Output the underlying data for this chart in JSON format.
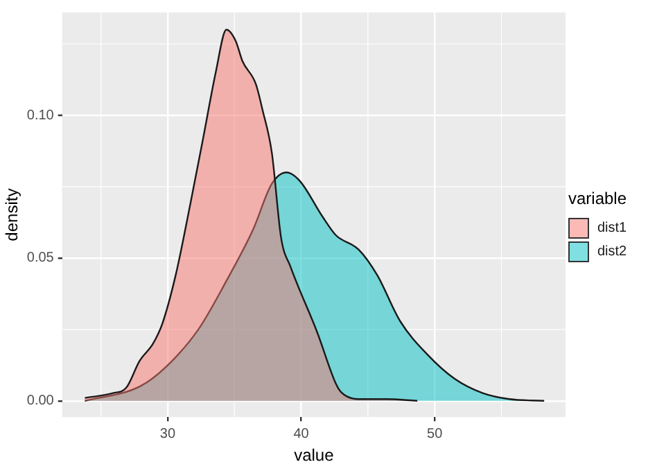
{
  "chart_data": {
    "type": "area",
    "xlabel": "value",
    "ylabel": "density",
    "legend_title": "variable",
    "legend": "right",
    "grid": true,
    "xlim": [
      22.1,
      59.8
    ],
    "ylim": [
      -0.0057,
      0.136
    ],
    "xticks": [
      30,
      40,
      50
    ],
    "yticks": [
      {
        "value": 0,
        "label": "0.00"
      },
      {
        "value": 0.05,
        "label": "0.05"
      },
      {
        "value": 0.1,
        "label": "0.10"
      }
    ],
    "series": [
      {
        "name": "dist1",
        "color": "#f8766d",
        "x": [
          23.8,
          25.9,
          26.9,
          27.9,
          28.9,
          29.6,
          30.6,
          31.7,
          32.7,
          33.6,
          34.4,
          35.1,
          35.6,
          36.6,
          37.1,
          37.8,
          38.5,
          39.2,
          41.2,
          42.6,
          43.0,
          44.3,
          46.3,
          48.7
        ],
        "values": [
          0.001,
          0.0027,
          0.0046,
          0.014,
          0.02,
          0.027,
          0.044,
          0.069,
          0.093,
          0.115,
          0.13,
          0.126,
          0.119,
          0.111,
          0.102,
          0.087,
          0.057,
          0.047,
          0.024,
          0.006,
          0.003,
          0.0006,
          0.0006,
          0
        ]
      },
      {
        "name": "dist2",
        "color": "#00bfc4",
        "x": [
          23.8,
          27.9,
          29.9,
          32.3,
          34.4,
          36.4,
          37.8,
          38.9,
          39.9,
          41.6,
          42.6,
          44.3,
          45.7,
          47.4,
          49.5,
          51.5,
          53.6,
          55.6,
          58.2
        ],
        "values": [
          0,
          0.005,
          0.012,
          0.025,
          0.042,
          0.06,
          0.076,
          0.08,
          0.077,
          0.0645,
          0.058,
          0.053,
          0.044,
          0.028,
          0.016,
          0.0077,
          0.0027,
          0.0006,
          0
        ]
      }
    ]
  }
}
